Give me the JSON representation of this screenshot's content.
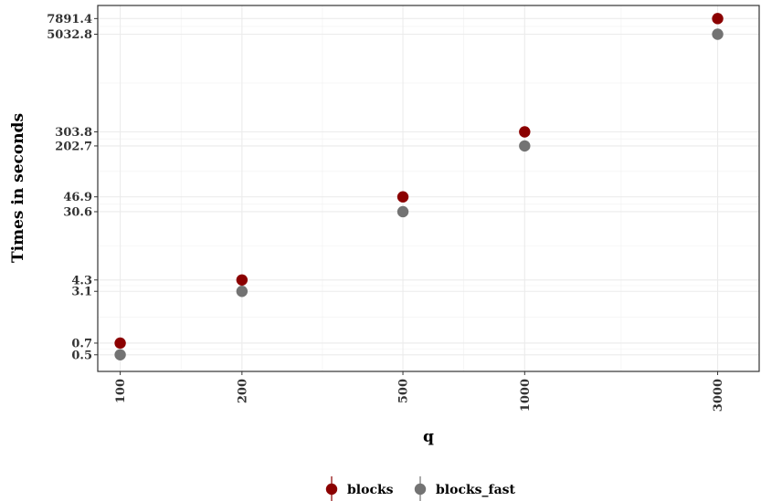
{
  "chart_data": {
    "type": "scatter",
    "xlabel": "q",
    "ylabel": "Times in seconds",
    "x_scale": "log",
    "y_scale": "log",
    "x_ticks": [
      100,
      200,
      500,
      1000,
      3000
    ],
    "y_ticks": [
      0.5,
      0.7,
      3.1,
      4.3,
      30.6,
      46.9,
      202.7,
      303.8,
      5032.8,
      7891.4
    ],
    "xlim": [
      88,
      3800
    ],
    "ylim": [
      0.31,
      11500
    ],
    "grid": true,
    "legend_position": "bottom",
    "series": [
      {
        "name": "blocks",
        "color": "#8b0000",
        "x": [
          100,
          200,
          500,
          1000,
          3000
        ],
        "y": [
          0.7,
          4.3,
          46.9,
          303.8,
          7891.4
        ]
      },
      {
        "name": "blocks_fast",
        "color": "#737373",
        "x": [
          100,
          200,
          500,
          1000,
          3000
        ],
        "y": [
          0.5,
          3.1,
          30.6,
          202.7,
          5032.8
        ]
      }
    ]
  }
}
